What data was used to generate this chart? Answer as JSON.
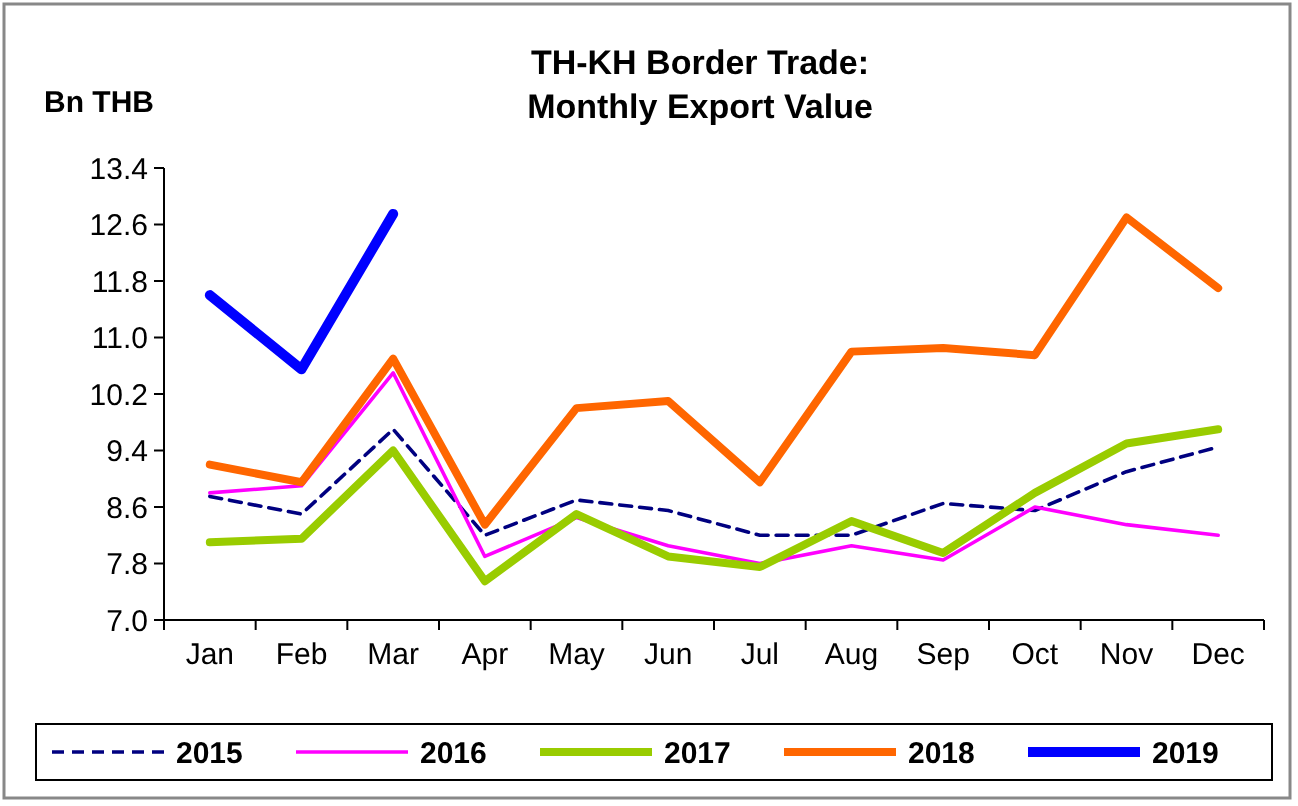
{
  "chart_data": {
    "type": "line",
    "title": "TH-KH Border Trade:\nMonthly Export Value",
    "ylabel": "Bn THB",
    "categories": [
      "Jan",
      "Feb",
      "Mar",
      "Apr",
      "May",
      "Jun",
      "Jul",
      "Aug",
      "Sep",
      "Oct",
      "Nov",
      "Dec"
    ],
    "ylim": [
      7.0,
      13.4
    ],
    "yticks": [
      {
        "value": 7.0,
        "label": "7.0"
      },
      {
        "value": 7.8,
        "label": "7.8"
      },
      {
        "value": 8.6,
        "label": "8.6"
      },
      {
        "value": 9.4,
        "label": "9.4"
      },
      {
        "value": 10.2,
        "label": "10.2"
      },
      {
        "value": 11.0,
        "label": "11.0"
      },
      {
        "value": 11.8,
        "label": "11.8"
      },
      {
        "value": 12.6,
        "label": "12.6"
      },
      {
        "value": 13.4,
        "label": "13.4"
      }
    ],
    "grid": false,
    "legend": "bottom",
    "marker": "none",
    "series": [
      {
        "name": "2015",
        "color": "#000080",
        "line_style": "dashed",
        "values": [
          8.75,
          8.5,
          9.7,
          8.2,
          8.7,
          8.55,
          8.2,
          8.2,
          8.65,
          8.55,
          9.1,
          9.45
        ]
      },
      {
        "name": "2016",
        "color": "#ff00ff",
        "line_style": "solid",
        "values": [
          8.8,
          8.9,
          10.5,
          7.9,
          8.45,
          8.05,
          7.8,
          8.05,
          7.85,
          8.6,
          8.35,
          8.2
        ]
      },
      {
        "name": "2017",
        "color": "#99cc00",
        "line_style": "solid",
        "values": [
          8.1,
          8.15,
          9.4,
          7.55,
          8.5,
          7.9,
          7.75,
          8.4,
          7.95,
          8.8,
          9.5,
          9.7
        ]
      },
      {
        "name": "2018",
        "color": "#ff6600",
        "line_style": "solid",
        "values": [
          9.2,
          8.95,
          10.7,
          8.35,
          10.0,
          10.1,
          8.95,
          10.8,
          10.85,
          10.75,
          12.7,
          11.7
        ]
      },
      {
        "name": "2019",
        "color": "#0000ff",
        "line_style": "solid",
        "values": [
          11.6,
          10.55,
          12.75,
          null,
          null,
          null,
          null,
          null,
          null,
          null,
          null,
          null
        ]
      }
    ]
  }
}
